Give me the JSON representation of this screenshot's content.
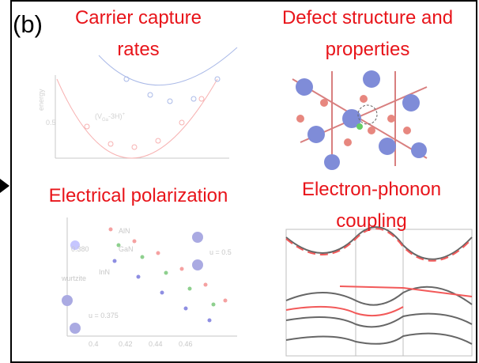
{
  "panel_label": "(b)",
  "panels": [
    {
      "title_lines": [
        "Carrier capture",
        "rates"
      ],
      "texts": [
        "energy",
        "0.5",
        "(V",
        "Ga",
        "-3H)",
        "+"
      ]
    },
    {
      "title_lines": [
        "Defect structure and",
        "properties"
      ],
      "texts": []
    },
    {
      "title_lines": [
        "Electrical polarization"
      ],
      "texts": [
        "AlN",
        "GaN",
        "InN",
        "wurtzite",
        "u = 0.375",
        "u = 0.5",
        "0.380",
        "0.4",
        "0.42",
        "0.44",
        "0.46"
      ]
    },
    {
      "title_lines": [
        "Electron-phonon",
        "coupling"
      ],
      "texts": []
    }
  ]
}
